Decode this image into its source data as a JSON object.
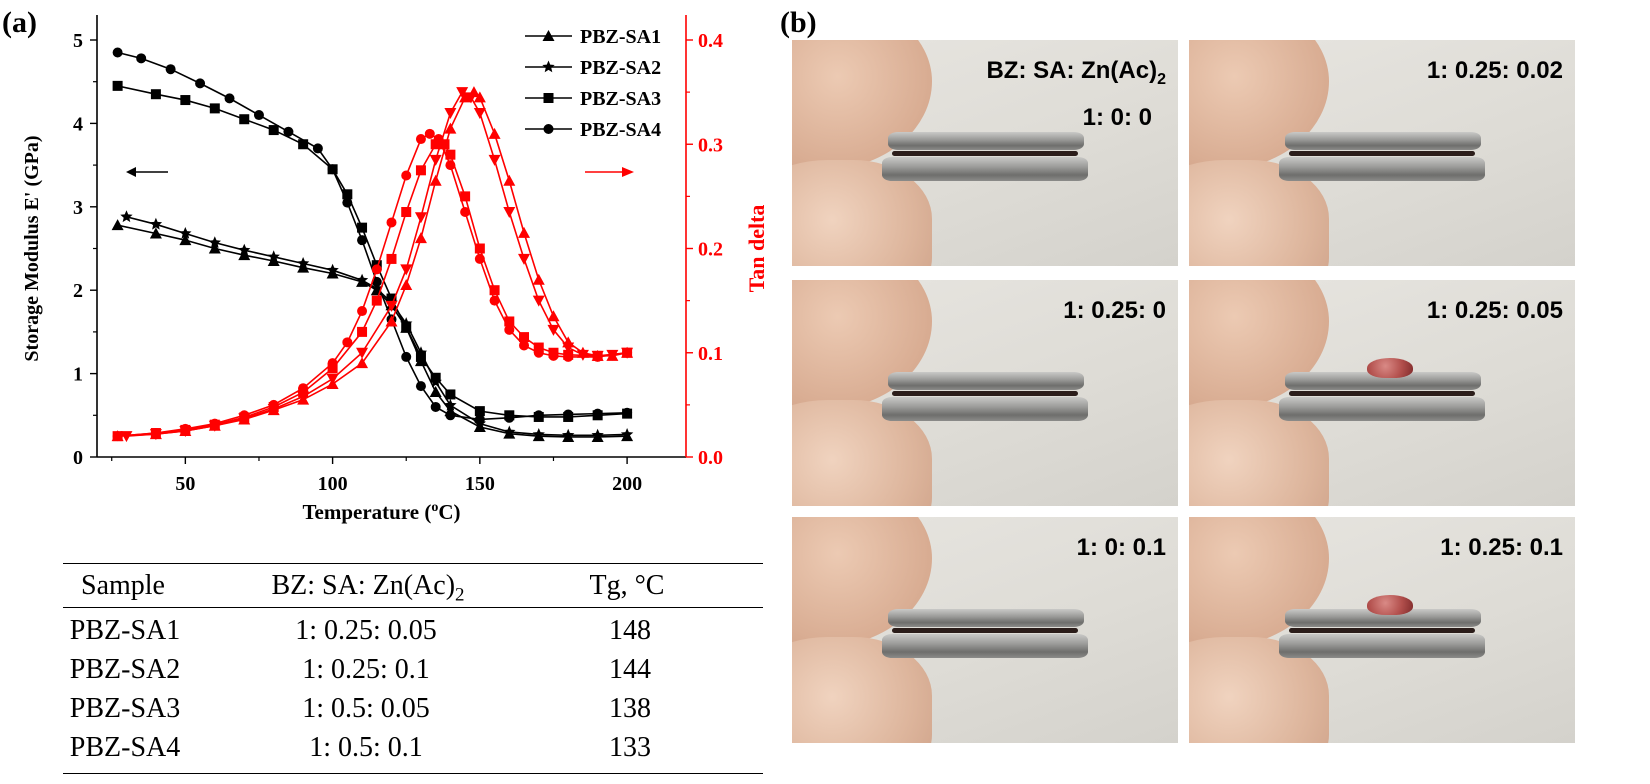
{
  "panel_a": {
    "label": "(a)"
  },
  "panel_b": {
    "label": "(b)",
    "photos": [
      {
        "caption_lines": [
          "BZ: SA: Zn(Ac)",
          "1: 0: 0"
        ],
        "subscript": "2",
        "blob": false
      },
      {
        "caption_lines": [
          "1: 0.25: 0.02"
        ],
        "blob": false
      },
      {
        "caption_lines": [
          "1: 0.25: 0"
        ],
        "blob": false
      },
      {
        "caption_lines": [
          "1: 0.25: 0.05"
        ],
        "blob": true
      },
      {
        "caption_lines": [
          "1: 0: 0.1"
        ],
        "blob": false
      },
      {
        "caption_lines": [
          "1: 0.25: 0.1"
        ],
        "blob": true
      }
    ]
  },
  "table": {
    "headers": [
      "Sample",
      "BZ: SA: Zn(Ac)",
      "Tg, °C"
    ],
    "header_subscript": "2",
    "rows": [
      [
        "PBZ-SA1",
        "1: 0.25: 0.05",
        "148"
      ],
      [
        "PBZ-SA2",
        "1: 0.25: 0.1",
        "144"
      ],
      [
        "PBZ-SA3",
        "1: 0.5: 0.05",
        "138"
      ],
      [
        "PBZ-SA4",
        "1: 0.5: 0.1",
        "133"
      ]
    ]
  },
  "chart_data": {
    "type": "line",
    "xlabel": "Temperature (",
    "xlabel_sup": "o",
    "xlabel_end": "C)",
    "ylabel_left": "Storage Modulus E' (GPa)",
    "ylabel_right": "Tan delta",
    "xlim": [
      20,
      220
    ],
    "ylim_left": [
      0,
      5
    ],
    "ylim_right": [
      0,
      0.4
    ],
    "x_ticks": [
      50,
      100,
      150,
      200
    ],
    "y_ticks_left": [
      0,
      1,
      2,
      3,
      4,
      5
    ],
    "y_ticks_right": [
      "0.0",
      "0.1",
      "0.2",
      "0.3",
      "0.4"
    ],
    "legend_position": "top-right",
    "colors": {
      "modulus": "#000000",
      "tan_delta": "#ff0000"
    },
    "series": [
      {
        "name": "PBZ-SA1",
        "marker": "triangle",
        "axis": "left",
        "x": [
          27,
          40,
          50,
          60,
          70,
          80,
          90,
          100,
          110,
          115,
          120,
          125,
          130,
          135,
          140,
          150,
          160,
          170,
          180,
          190,
          200
        ],
        "y": [
          2.78,
          2.68,
          2.6,
          2.5,
          2.42,
          2.35,
          2.27,
          2.2,
          2.1,
          2.0,
          1.82,
          1.55,
          1.15,
          0.78,
          0.55,
          0.36,
          0.28,
          0.25,
          0.24,
          0.24,
          0.25
        ]
      },
      {
        "name": "PBZ-SA2",
        "marker": "star",
        "axis": "left",
        "x": [
          30,
          40,
          50,
          60,
          70,
          80,
          90,
          100,
          110,
          115,
          120,
          125,
          130,
          135,
          140,
          150,
          160,
          170,
          180,
          190,
          200
        ],
        "y": [
          2.88,
          2.79,
          2.68,
          2.57,
          2.48,
          2.4,
          2.32,
          2.24,
          2.12,
          2.02,
          1.85,
          1.6,
          1.25,
          0.9,
          0.62,
          0.4,
          0.3,
          0.27,
          0.26,
          0.26,
          0.27
        ]
      },
      {
        "name": "PBZ-SA3",
        "marker": "square",
        "axis": "left",
        "x": [
          27,
          40,
          50,
          60,
          70,
          80,
          90,
          100,
          105,
          110,
          115,
          120,
          125,
          130,
          135,
          140,
          150,
          160,
          170,
          180,
          190,
          200
        ],
        "y": [
          4.45,
          4.35,
          4.28,
          4.18,
          4.05,
          3.92,
          3.75,
          3.45,
          3.15,
          2.75,
          2.3,
          1.9,
          1.55,
          1.2,
          0.95,
          0.75,
          0.55,
          0.5,
          0.48,
          0.48,
          0.5,
          0.52
        ]
      },
      {
        "name": "PBZ-SA4",
        "marker": "circle",
        "axis": "left",
        "x": [
          27,
          35,
          45,
          55,
          65,
          75,
          85,
          95,
          100,
          105,
          110,
          115,
          120,
          125,
          130,
          135,
          140,
          150,
          160,
          170,
          180,
          190,
          200
        ],
        "y": [
          4.85,
          4.78,
          4.65,
          4.48,
          4.3,
          4.1,
          3.9,
          3.7,
          3.45,
          3.05,
          2.6,
          2.1,
          1.65,
          1.2,
          0.85,
          0.6,
          0.5,
          0.45,
          0.47,
          0.5,
          0.51,
          0.52,
          0.53
        ]
      },
      {
        "name": "PBZ-SA1",
        "axis": "right",
        "marker": "triangle",
        "x": [
          27,
          40,
          50,
          60,
          70,
          80,
          90,
          100,
          110,
          120,
          125,
          130,
          135,
          140,
          145,
          148,
          150,
          155,
          160,
          165,
          170,
          175,
          180,
          185,
          190,
          195,
          200
        ],
        "y": [
          0.02,
          0.022,
          0.025,
          0.03,
          0.036,
          0.045,
          0.055,
          0.07,
          0.09,
          0.13,
          0.165,
          0.21,
          0.265,
          0.315,
          0.345,
          0.35,
          0.345,
          0.31,
          0.265,
          0.215,
          0.17,
          0.135,
          0.11,
          0.1,
          0.097,
          0.097,
          0.1
        ]
      },
      {
        "name": "PBZ-SA2",
        "axis": "right",
        "marker": "star",
        "x": [
          30,
          40,
          50,
          60,
          70,
          80,
          90,
          100,
          110,
          120,
          125,
          130,
          135,
          140,
          144,
          147,
          150,
          155,
          160,
          165,
          170,
          175,
          180,
          185,
          190,
          195,
          200
        ],
        "y": [
          0.02,
          0.022,
          0.025,
          0.03,
          0.037,
          0.046,
          0.058,
          0.075,
          0.1,
          0.145,
          0.18,
          0.23,
          0.285,
          0.33,
          0.35,
          0.345,
          0.33,
          0.285,
          0.235,
          0.19,
          0.15,
          0.122,
          0.105,
          0.098,
          0.097,
          0.098,
          0.1
        ]
      },
      {
        "name": "PBZ-SA3",
        "axis": "right",
        "marker": "square",
        "x": [
          27,
          40,
          50,
          60,
          70,
          80,
          90,
          100,
          110,
          115,
          120,
          125,
          130,
          135,
          138,
          140,
          145,
          150,
          155,
          160,
          165,
          170,
          175,
          180,
          190,
          200
        ],
        "y": [
          0.02,
          0.023,
          0.026,
          0.031,
          0.038,
          0.048,
          0.062,
          0.085,
          0.12,
          0.15,
          0.19,
          0.235,
          0.275,
          0.3,
          0.3,
          0.29,
          0.25,
          0.2,
          0.16,
          0.13,
          0.115,
          0.105,
          0.1,
          0.098,
          0.097,
          0.1
        ]
      },
      {
        "name": "PBZ-SA4",
        "axis": "right",
        "marker": "circle",
        "x": [
          27,
          40,
          50,
          60,
          70,
          80,
          90,
          100,
          105,
          110,
          115,
          120,
          125,
          130,
          133,
          136,
          140,
          145,
          150,
          155,
          160,
          165,
          170,
          175,
          180,
          190,
          200
        ],
        "y": [
          0.02,
          0.023,
          0.027,
          0.032,
          0.04,
          0.05,
          0.066,
          0.09,
          0.11,
          0.14,
          0.18,
          0.225,
          0.27,
          0.305,
          0.31,
          0.305,
          0.28,
          0.235,
          0.19,
          0.15,
          0.122,
          0.107,
          0.1,
          0.097,
          0.096,
          0.096,
          0.1
        ]
      }
    ]
  }
}
